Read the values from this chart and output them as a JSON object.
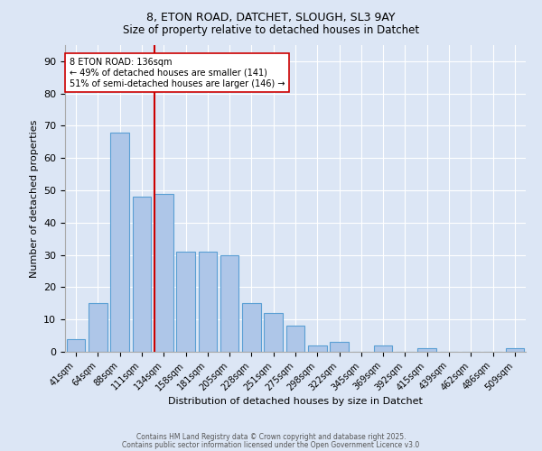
{
  "title1": "8, ETON ROAD, DATCHET, SLOUGH, SL3 9AY",
  "title2": "Size of property relative to detached houses in Datchet",
  "xlabel": "Distribution of detached houses by size in Datchet",
  "ylabel": "Number of detached properties",
  "categories": [
    "41sqm",
    "64sqm",
    "88sqm",
    "111sqm",
    "134sqm",
    "158sqm",
    "181sqm",
    "205sqm",
    "228sqm",
    "251sqm",
    "275sqm",
    "298sqm",
    "322sqm",
    "345sqm",
    "369sqm",
    "392sqm",
    "415sqm",
    "439sqm",
    "462sqm",
    "486sqm",
    "509sqm"
  ],
  "values": [
    4,
    15,
    68,
    48,
    49,
    31,
    31,
    30,
    15,
    12,
    8,
    2,
    3,
    0,
    2,
    0,
    1,
    0,
    0,
    0,
    1
  ],
  "bar_color": "#aec6e8",
  "bar_edge_color": "#5a9fd4",
  "ylim": [
    0,
    95
  ],
  "yticks": [
    0,
    10,
    20,
    30,
    40,
    50,
    60,
    70,
    80,
    90
  ],
  "vline_index": 4,
  "vline_color": "#cc0000",
  "annotation_text": "8 ETON ROAD: 136sqm\n← 49% of detached houses are smaller (141)\n51% of semi-detached houses are larger (146) →",
  "annotation_box_color": "#ffffff",
  "annotation_box_edge_color": "#cc0000",
  "footer1": "Contains HM Land Registry data © Crown copyright and database right 2025.",
  "footer2": "Contains public sector information licensed under the Open Government Licence v3.0",
  "background_color": "#dce6f5",
  "plot_background_color": "#dce6f5"
}
